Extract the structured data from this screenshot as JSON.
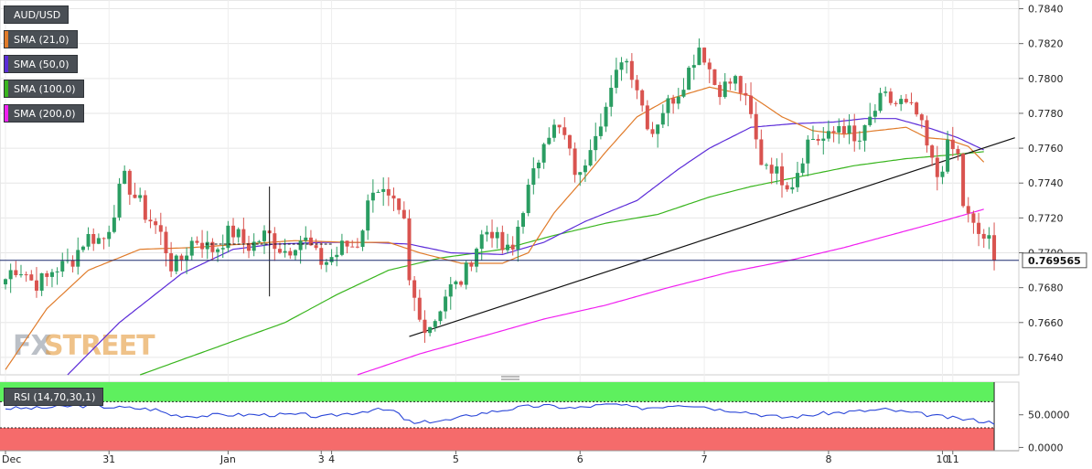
{
  "legend": [
    {
      "label": "AUD/USD",
      "color": "#4a4f55"
    },
    {
      "label": "SMA (21,0)",
      "color": "#e07b2a"
    },
    {
      "label": "SMA (50,0)",
      "color": "#5b2bd8"
    },
    {
      "label": "SMA (100,0)",
      "color": "#39b51e"
    },
    {
      "label": "SMA (200,0)",
      "color": "#f020f0"
    }
  ],
  "rsi_label": "RSI (14,70,30,1)",
  "watermark": {
    "part1": "FX",
    "part2": "STREET"
  },
  "last_price": "0.769565",
  "colors": {
    "up": "#2a9d62",
    "down": "#d9534f",
    "sma21": "#e07b2a",
    "sma50": "#5b2bd8",
    "sma100": "#39b51e",
    "sma200": "#f020f0",
    "rsi": "#2a46d8",
    "overbought": "#5ef05e",
    "oversold": "#f56b6b"
  },
  "chart_data": [
    {
      "type": "candlestick",
      "title": "AUD/USD",
      "ylim": [
        0.763,
        0.7845
      ],
      "y_ticks": [
        "0.7640",
        "0.7660",
        "0.7680",
        "0.7700",
        "0.7720",
        "0.7740",
        "0.7760",
        "0.7780",
        "0.7800",
        "0.7820",
        "0.7840"
      ],
      "x_tick_labels": [
        {
          "label": "Dec",
          "x": 0
        },
        {
          "label": "31",
          "x": 20
        },
        {
          "label": "Jan",
          "x": 43
        },
        {
          "label": "3",
          "x": 61
        },
        {
          "label": "4",
          "x": 63
        },
        {
          "label": "5",
          "x": 87
        },
        {
          "label": "6",
          "x": 111
        },
        {
          "label": "7",
          "x": 135
        },
        {
          "label": "8",
          "x": 159
        },
        {
          "label": "10",
          "x": 181
        },
        {
          "label": "11",
          "x": 183
        }
      ],
      "close_anchors": [
        [
          0,
          0.7685
        ],
        [
          4,
          0.769
        ],
        [
          8,
          0.7682
        ],
        [
          12,
          0.7698
        ],
        [
          16,
          0.7705
        ],
        [
          19,
          0.7712
        ],
        [
          23,
          0.7738
        ],
        [
          26,
          0.7732
        ],
        [
          29,
          0.7712
        ],
        [
          32,
          0.7695
        ],
        [
          36,
          0.7703
        ],
        [
          40,
          0.7706
        ],
        [
          44,
          0.7708
        ],
        [
          48,
          0.7708
        ],
        [
          52,
          0.7705
        ],
        [
          56,
          0.7706
        ],
        [
          60,
          0.77
        ],
        [
          64,
          0.7696
        ],
        [
          68,
          0.771
        ],
        [
          71,
          0.7735
        ],
        [
          75,
          0.773
        ],
        [
          77,
          0.7715
        ],
        [
          78,
          0.7678
        ],
        [
          80,
          0.766
        ],
        [
          83,
          0.7665
        ],
        [
          87,
          0.768
        ],
        [
          90,
          0.77
        ],
        [
          94,
          0.7712
        ],
        [
          98,
          0.77
        ],
        [
          101,
          0.7735
        ],
        [
          104,
          0.777
        ],
        [
          108,
          0.7765
        ],
        [
          111,
          0.7745
        ],
        [
          114,
          0.7768
        ],
        [
          117,
          0.7795
        ],
        [
          119,
          0.7812
        ],
        [
          122,
          0.7795
        ],
        [
          125,
          0.7772
        ],
        [
          128,
          0.7782
        ],
        [
          131,
          0.7803
        ],
        [
          134,
          0.7815
        ],
        [
          137,
          0.78
        ],
        [
          141,
          0.7795
        ],
        [
          144,
          0.778
        ],
        [
          146,
          0.7755
        ],
        [
          149,
          0.7742
        ],
        [
          152,
          0.7745
        ],
        [
          155,
          0.776
        ],
        [
          158,
          0.7768
        ],
        [
          161,
          0.7772
        ],
        [
          164,
          0.7762
        ],
        [
          167,
          0.7778
        ],
        [
          170,
          0.7785
        ],
        [
          173,
          0.779
        ],
        [
          176,
          0.7775
        ],
        [
          178,
          0.776
        ],
        [
          180,
          0.7748
        ],
        [
          182,
          0.7758
        ],
        [
          184,
          0.7752
        ],
        [
          185,
          0.7728
        ],
        [
          187,
          0.7718
        ],
        [
          189,
          0.7707
        ],
        [
          191,
          0.7697
        ]
      ],
      "sma21_anchors": [
        [
          0,
          0.7633
        ],
        [
          8,
          0.7668
        ],
        [
          16,
          0.769
        ],
        [
          26,
          0.7702
        ],
        [
          36,
          0.7703
        ],
        [
          46,
          0.7705
        ],
        [
          56,
          0.7707
        ],
        [
          66,
          0.7706
        ],
        [
          74,
          0.7706
        ],
        [
          80,
          0.77
        ],
        [
          88,
          0.7694
        ],
        [
          96,
          0.7694
        ],
        [
          101,
          0.77
        ],
        [
          106,
          0.7723
        ],
        [
          111,
          0.774
        ],
        [
          116,
          0.7758
        ],
        [
          122,
          0.7778
        ],
        [
          128,
          0.7788
        ],
        [
          136,
          0.7795
        ],
        [
          144,
          0.779
        ],
        [
          150,
          0.7778
        ],
        [
          156,
          0.777
        ],
        [
          162,
          0.7768
        ],
        [
          168,
          0.777
        ],
        [
          174,
          0.7772
        ],
        [
          178,
          0.7766
        ],
        [
          182,
          0.7765
        ],
        [
          186,
          0.7761
        ],
        [
          189,
          0.7752
        ]
      ],
      "sma50_anchors": [
        [
          12,
          0.763
        ],
        [
          22,
          0.766
        ],
        [
          34,
          0.7688
        ],
        [
          44,
          0.7702
        ],
        [
          52,
          0.7705
        ],
        [
          62,
          0.7706
        ],
        [
          70,
          0.7706
        ],
        [
          78,
          0.7705
        ],
        [
          86,
          0.77
        ],
        [
          96,
          0.7699
        ],
        [
          104,
          0.7706
        ],
        [
          112,
          0.7718
        ],
        [
          122,
          0.773
        ],
        [
          130,
          0.7748
        ],
        [
          136,
          0.776
        ],
        [
          144,
          0.7772
        ],
        [
          152,
          0.7774
        ],
        [
          160,
          0.7775
        ],
        [
          166,
          0.7777
        ],
        [
          172,
          0.7777
        ],
        [
          178,
          0.7772
        ],
        [
          184,
          0.7766
        ],
        [
          189,
          0.7759
        ]
      ],
      "sma100_anchors": [
        [
          26,
          0.763
        ],
        [
          40,
          0.7645
        ],
        [
          54,
          0.766
        ],
        [
          64,
          0.7676
        ],
        [
          74,
          0.769
        ],
        [
          84,
          0.7697
        ],
        [
          96,
          0.7702
        ],
        [
          106,
          0.771
        ],
        [
          116,
          0.7717
        ],
        [
          126,
          0.7722
        ],
        [
          136,
          0.7732
        ],
        [
          144,
          0.7738
        ],
        [
          154,
          0.7744
        ],
        [
          164,
          0.775
        ],
        [
          174,
          0.7754
        ],
        [
          182,
          0.7756
        ],
        [
          189,
          0.7758
        ]
      ],
      "sma200_anchors": [
        [
          68,
          0.763
        ],
        [
          80,
          0.7642
        ],
        [
          92,
          0.7652
        ],
        [
          104,
          0.7662
        ],
        [
          116,
          0.767
        ],
        [
          128,
          0.768
        ],
        [
          140,
          0.7689
        ],
        [
          152,
          0.7696
        ],
        [
          162,
          0.7703
        ],
        [
          172,
          0.7711
        ],
        [
          182,
          0.7719
        ],
        [
          189,
          0.7725
        ]
      ],
      "trendline": [
        [
          78,
          0.7652
        ],
        [
          195,
          0.7766
        ]
      ],
      "crosshair_x": 51,
      "crosshair_y": 0.7705,
      "last_price_value": 0.769565
    },
    {
      "type": "line",
      "title": "RSI (14,70,30,1)",
      "ylim": [
        -5,
        100
      ],
      "y_ticks": [
        "0.0000",
        "50.0000"
      ],
      "overbought": 70,
      "oversold": 30,
      "rsi_anchors": [
        [
          0,
          60
        ],
        [
          6,
          60
        ],
        [
          14,
          64
        ],
        [
          20,
          62
        ],
        [
          25,
          60
        ],
        [
          29,
          58
        ],
        [
          32,
          50
        ],
        [
          36,
          48
        ],
        [
          42,
          50
        ],
        [
          48,
          50
        ],
        [
          54,
          50
        ],
        [
          58,
          50
        ],
        [
          61,
          46
        ],
        [
          64,
          50
        ],
        [
          68,
          54
        ],
        [
          71,
          58
        ],
        [
          75,
          56
        ],
        [
          77,
          44
        ],
        [
          79,
          36
        ],
        [
          82,
          40
        ],
        [
          86,
          42
        ],
        [
          90,
          50
        ],
        [
          95,
          56
        ],
        [
          100,
          62
        ],
        [
          104,
          64
        ],
        [
          110,
          60
        ],
        [
          114,
          64
        ],
        [
          118,
          66
        ],
        [
          122,
          60
        ],
        [
          126,
          62
        ],
        [
          130,
          66
        ],
        [
          134,
          64
        ],
        [
          138,
          58
        ],
        [
          142,
          56
        ],
        [
          146,
          50
        ],
        [
          150,
          46
        ],
        [
          154,
          48
        ],
        [
          158,
          52
        ],
        [
          162,
          54
        ],
        [
          166,
          56
        ],
        [
          170,
          58
        ],
        [
          174,
          54
        ],
        [
          178,
          50
        ],
        [
          181,
          47
        ],
        [
          184,
          44
        ],
        [
          187,
          42
        ],
        [
          189,
          40
        ],
        [
          191,
          38
        ]
      ]
    }
  ]
}
